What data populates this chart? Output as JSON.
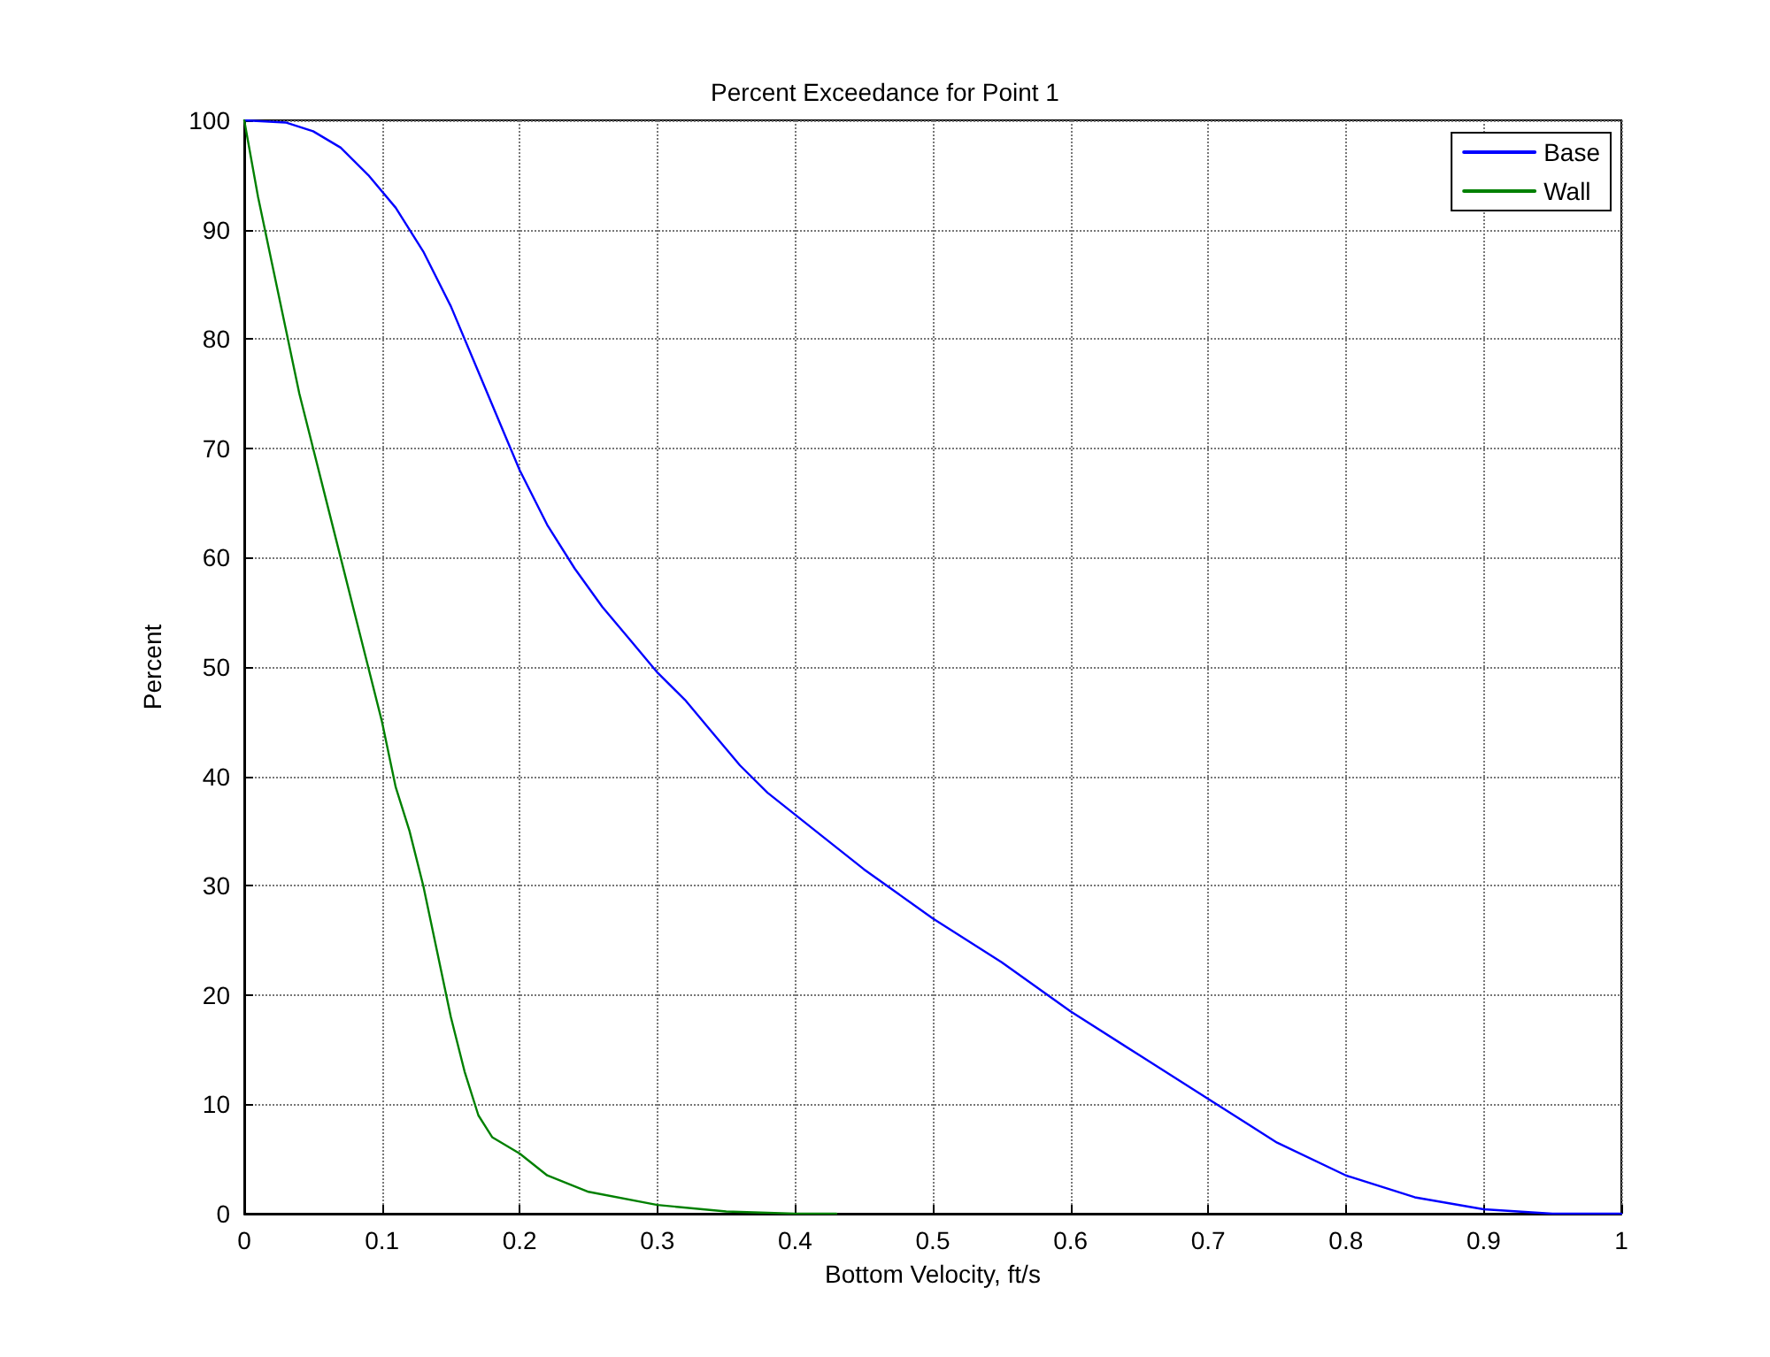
{
  "chart_data": {
    "type": "line",
    "title": "Percent Exceedance for Point 1",
    "xlabel": "Bottom Velocity, ft/s",
    "ylabel": "Percent",
    "xlim": [
      0,
      1
    ],
    "xticks": [
      0,
      0.1,
      0.2,
      0.3,
      0.4,
      0.5,
      0.6,
      0.7,
      0.8,
      0.9,
      1
    ],
    "ylim": [
      0,
      100
    ],
    "yticks": [
      0,
      10,
      20,
      30,
      40,
      50,
      60,
      70,
      80,
      90,
      100
    ],
    "grid": true,
    "legend": "top right",
    "marker": "none",
    "line_style": "solid",
    "series": [
      {
        "name": "Base",
        "color": "#0000ff",
        "x": [
          0,
          0.03,
          0.05,
          0.07,
          0.09,
          0.11,
          0.13,
          0.15,
          0.17,
          0.19,
          0.2,
          0.22,
          0.24,
          0.26,
          0.28,
          0.3,
          0.32,
          0.34,
          0.36,
          0.38,
          0.4,
          0.42,
          0.45,
          0.5,
          0.55,
          0.6,
          0.65,
          0.7,
          0.75,
          0.8,
          0.85,
          0.9,
          0.95,
          1
        ],
        "values": [
          100,
          99.8,
          99,
          97.5,
          95,
          92,
          88,
          83,
          77,
          71,
          68,
          63,
          59,
          55.5,
          52.5,
          49.5,
          47,
          44,
          41,
          38.5,
          36.5,
          34.5,
          31.5,
          27,
          23,
          18.5,
          14.5,
          10.5,
          6.5,
          3.5,
          1.5,
          0.4,
          0,
          0
        ]
      },
      {
        "name": "Wall",
        "color": "#008000",
        "x": [
          0,
          0.01,
          0.02,
          0.03,
          0.04,
          0.05,
          0.06,
          0.07,
          0.08,
          0.09,
          0.1,
          0.11,
          0.12,
          0.13,
          0.14,
          0.15,
          0.16,
          0.17,
          0.18,
          0.2,
          0.22,
          0.25,
          0.3,
          0.35,
          0.4,
          0.43
        ],
        "values": [
          100,
          93,
          87,
          81,
          75,
          70,
          65,
          60,
          55,
          50,
          45,
          39,
          35,
          30,
          24,
          18,
          13,
          9,
          7,
          5.5,
          3.5,
          2,
          0.8,
          0.2,
          0,
          0
        ]
      }
    ]
  }
}
